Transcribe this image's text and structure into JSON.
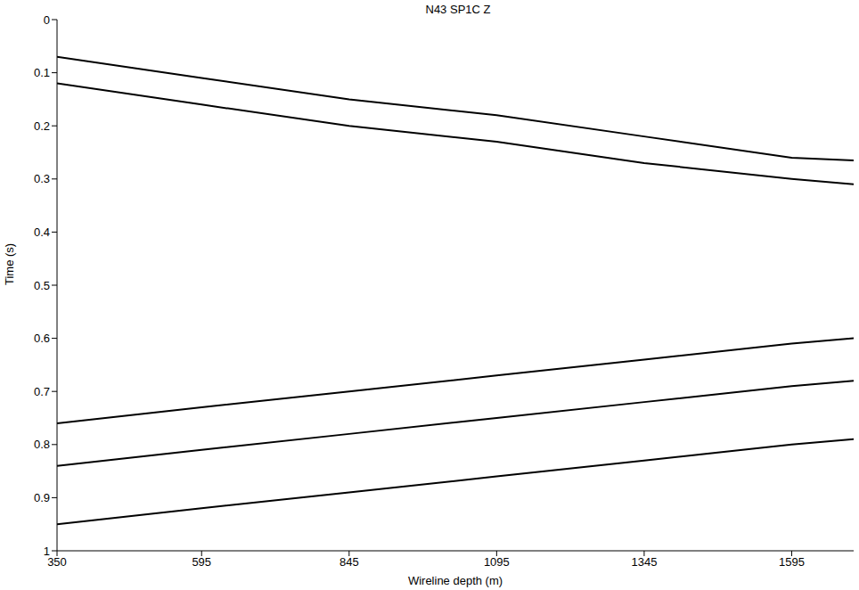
{
  "chart_data": {
    "type": "line",
    "title": "N43 SP1C Z",
    "x_label": "Wireline depth (m)",
    "y_label": "Time (s)",
    "x": [
      350,
      595,
      845,
      1095,
      1345,
      1595,
      1700
    ],
    "series": [
      {
        "color": "#000000",
        "values": [
          0.07,
          0.11,
          0.15,
          0.18,
          0.22,
          0.26,
          0.265
        ]
      },
      {
        "color": "#000000",
        "values": [
          0.12,
          0.16,
          0.2,
          0.23,
          0.27,
          0.3,
          0.31
        ]
      },
      {
        "color": "#000000",
        "values": [
          0.76,
          0.73,
          0.7,
          0.67,
          0.64,
          0.61,
          0.6
        ]
      },
      {
        "color": "#000000",
        "values": [
          0.84,
          0.81,
          0.78,
          0.75,
          0.72,
          0.69,
          0.68
        ]
      },
      {
        "color": "#000000",
        "values": [
          0.95,
          0.92,
          0.89,
          0.86,
          0.83,
          0.8,
          0.79
        ]
      }
    ],
    "xlim": [
      350,
      1700
    ],
    "xticks": [
      350,
      595,
      845,
      1095,
      1345,
      1595
    ],
    "ylim": [
      0,
      1
    ],
    "yticks": [
      0,
      0.1,
      0.2,
      0.3,
      0.4,
      0.5,
      0.6,
      0.7,
      0.8,
      0.9,
      1
    ],
    "grid": false
  }
}
